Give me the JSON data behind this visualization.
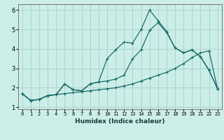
{
  "xlabel": "Humidex (Indice chaleur)",
  "xlim": [
    -0.5,
    23.5
  ],
  "ylim": [
    0.9,
    6.3
  ],
  "yticks": [
    1,
    2,
    3,
    4,
    5,
    6
  ],
  "xticks": [
    0,
    1,
    2,
    3,
    4,
    5,
    6,
    7,
    8,
    9,
    10,
    11,
    12,
    13,
    14,
    15,
    16,
    17,
    18,
    19,
    20,
    21,
    22,
    23
  ],
  "line_color": "#1a6b6b",
  "bg_color": "#cceee8",
  "grid_color": "#aad4cc",
  "line1_x": [
    0,
    1,
    2,
    3,
    4,
    5,
    6,
    7,
    8,
    9,
    10,
    11,
    12,
    13,
    14,
    15,
    16,
    17,
    18,
    19,
    20,
    21,
    22,
    23
  ],
  "line1_y": [
    1.7,
    1.35,
    1.4,
    1.6,
    1.65,
    1.7,
    1.75,
    1.8,
    1.85,
    1.9,
    1.95,
    2.0,
    2.1,
    2.2,
    2.35,
    2.5,
    2.65,
    2.8,
    3.0,
    3.25,
    3.55,
    3.8,
    3.9,
    1.95
  ],
  "line2_x": [
    0,
    1,
    2,
    3,
    4,
    5,
    6,
    7,
    8,
    9,
    10,
    11,
    12,
    13,
    14,
    15,
    16,
    17,
    18,
    19,
    20,
    21,
    22,
    23
  ],
  "line2_y": [
    1.7,
    1.35,
    1.4,
    1.6,
    1.65,
    2.2,
    1.9,
    1.85,
    2.2,
    2.3,
    2.35,
    2.45,
    2.65,
    3.5,
    3.95,
    4.95,
    5.35,
    4.85,
    4.05,
    3.8,
    3.95,
    3.6,
    2.9,
    1.95
  ],
  "line3_x": [
    0,
    1,
    2,
    3,
    4,
    5,
    6,
    7,
    8,
    9,
    10,
    11,
    12,
    13,
    14,
    15,
    16,
    17,
    18,
    19,
    20,
    21,
    22,
    23
  ],
  "line3_y": [
    1.7,
    1.35,
    1.4,
    1.6,
    1.65,
    2.2,
    1.9,
    1.85,
    2.2,
    2.3,
    3.5,
    3.95,
    4.35,
    4.3,
    5.0,
    6.0,
    5.45,
    4.9,
    4.05,
    3.8,
    3.95,
    3.6,
    2.9,
    1.95
  ]
}
